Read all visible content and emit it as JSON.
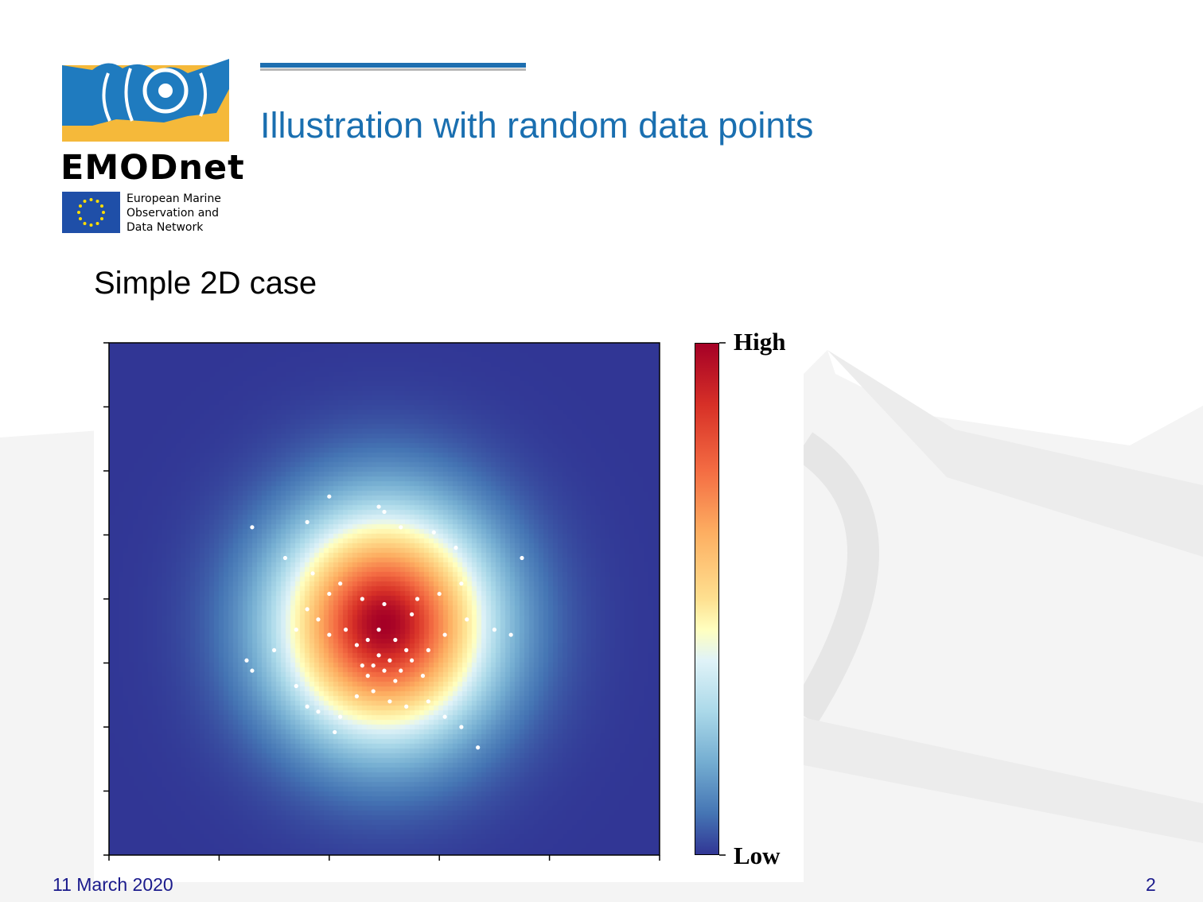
{
  "slide": {
    "title": "Illustration with random data points",
    "subtitle": "Simple 2D case",
    "date": "11 March 2020",
    "page_number": "2"
  },
  "logo": {
    "wordmark": "EMODnet",
    "tagline": [
      "European Marine",
      "Observation and",
      "Data Network"
    ]
  },
  "colorbar": {
    "high_label": "High",
    "low_label": "Low"
  },
  "colors": {
    "title_blue": "#1a6fb0",
    "footer_blue": "#1a1a8c",
    "logo_blue": "#1f7bbf",
    "logo_yellow": "#f5b93a"
  },
  "chart_data": {
    "type": "heatmap",
    "colormap": "RdYlBu_r",
    "field": "2D Gaussian density field with scattered observation points",
    "center": [
      0.5,
      0.45
    ],
    "points": [
      [
        0.26,
        0.64
      ],
      [
        0.4,
        0.7
      ],
      [
        0.36,
        0.65
      ],
      [
        0.49,
        0.68
      ],
      [
        0.5,
        0.67
      ],
      [
        0.53,
        0.64
      ],
      [
        0.59,
        0.63
      ],
      [
        0.63,
        0.6
      ],
      [
        0.75,
        0.58
      ],
      [
        0.64,
        0.53
      ],
      [
        0.32,
        0.58
      ],
      [
        0.37,
        0.55
      ],
      [
        0.4,
        0.51
      ],
      [
        0.42,
        0.53
      ],
      [
        0.46,
        0.5
      ],
      [
        0.5,
        0.49
      ],
      [
        0.55,
        0.47
      ],
      [
        0.56,
        0.5
      ],
      [
        0.6,
        0.51
      ],
      [
        0.65,
        0.46
      ],
      [
        0.7,
        0.44
      ],
      [
        0.73,
        0.43
      ],
      [
        0.61,
        0.43
      ],
      [
        0.58,
        0.4
      ],
      [
        0.54,
        0.4
      ],
      [
        0.52,
        0.42
      ],
      [
        0.49,
        0.44
      ],
      [
        0.47,
        0.42
      ],
      [
        0.45,
        0.41
      ],
      [
        0.43,
        0.44
      ],
      [
        0.4,
        0.43
      ],
      [
        0.38,
        0.46
      ],
      [
        0.36,
        0.48
      ],
      [
        0.34,
        0.44
      ],
      [
        0.3,
        0.4
      ],
      [
        0.26,
        0.36
      ],
      [
        0.25,
        0.38
      ],
      [
        0.34,
        0.33
      ],
      [
        0.36,
        0.29
      ],
      [
        0.38,
        0.28
      ],
      [
        0.42,
        0.27
      ],
      [
        0.45,
        0.31
      ],
      [
        0.48,
        0.32
      ],
      [
        0.51,
        0.3
      ],
      [
        0.54,
        0.29
      ],
      [
        0.58,
        0.3
      ],
      [
        0.61,
        0.27
      ],
      [
        0.64,
        0.25
      ],
      [
        0.67,
        0.21
      ],
      [
        0.41,
        0.24
      ],
      [
        0.5,
        0.36
      ],
      [
        0.51,
        0.38
      ],
      [
        0.49,
        0.39
      ],
      [
        0.48,
        0.37
      ],
      [
        0.52,
        0.34
      ],
      [
        0.47,
        0.35
      ],
      [
        0.46,
        0.37
      ],
      [
        0.53,
        0.36
      ],
      [
        0.55,
        0.38
      ],
      [
        0.57,
        0.35
      ]
    ]
  }
}
